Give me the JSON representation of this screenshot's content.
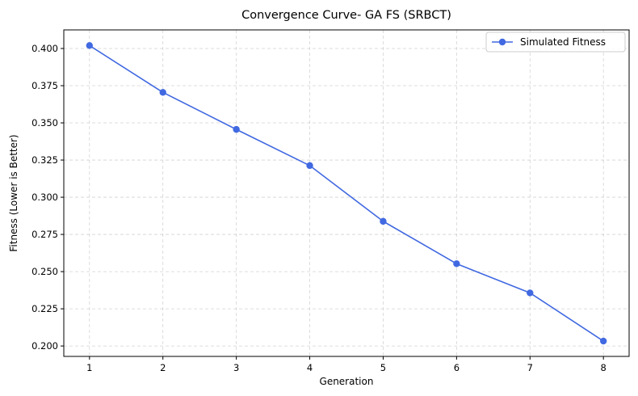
{
  "chart_data": {
    "type": "line",
    "title": "Convergence Curve- GA FS (SRBCT)",
    "xlabel": "Generation",
    "ylabel": "Fitness (Lower is Better)",
    "x": [
      1,
      2,
      3,
      4,
      5,
      6,
      7,
      8
    ],
    "series": [
      {
        "name": "Simulated Fitness",
        "color": "#4169e1",
        "marker": "circle",
        "values": [
          0.402,
          0.3705,
          0.3456,
          0.3213,
          0.2838,
          0.2553,
          0.2357,
          0.2033
        ]
      }
    ],
    "xlim": [
      0.65,
      8.35
    ],
    "ylim": [
      0.193,
      0.4125
    ],
    "xticks": [
      1,
      2,
      3,
      4,
      5,
      6,
      7,
      8
    ],
    "xtick_labels": [
      "1",
      "2",
      "3",
      "4",
      "5",
      "6",
      "7",
      "8"
    ],
    "yticks": [
      0.2,
      0.225,
      0.25,
      0.275,
      0.3,
      0.325,
      0.35,
      0.375,
      0.4
    ],
    "ytick_labels": [
      "0.200",
      "0.225",
      "0.250",
      "0.275",
      "0.300",
      "0.325",
      "0.350",
      "0.375",
      "0.400"
    ],
    "grid": true,
    "legend_position": "top-right"
  }
}
